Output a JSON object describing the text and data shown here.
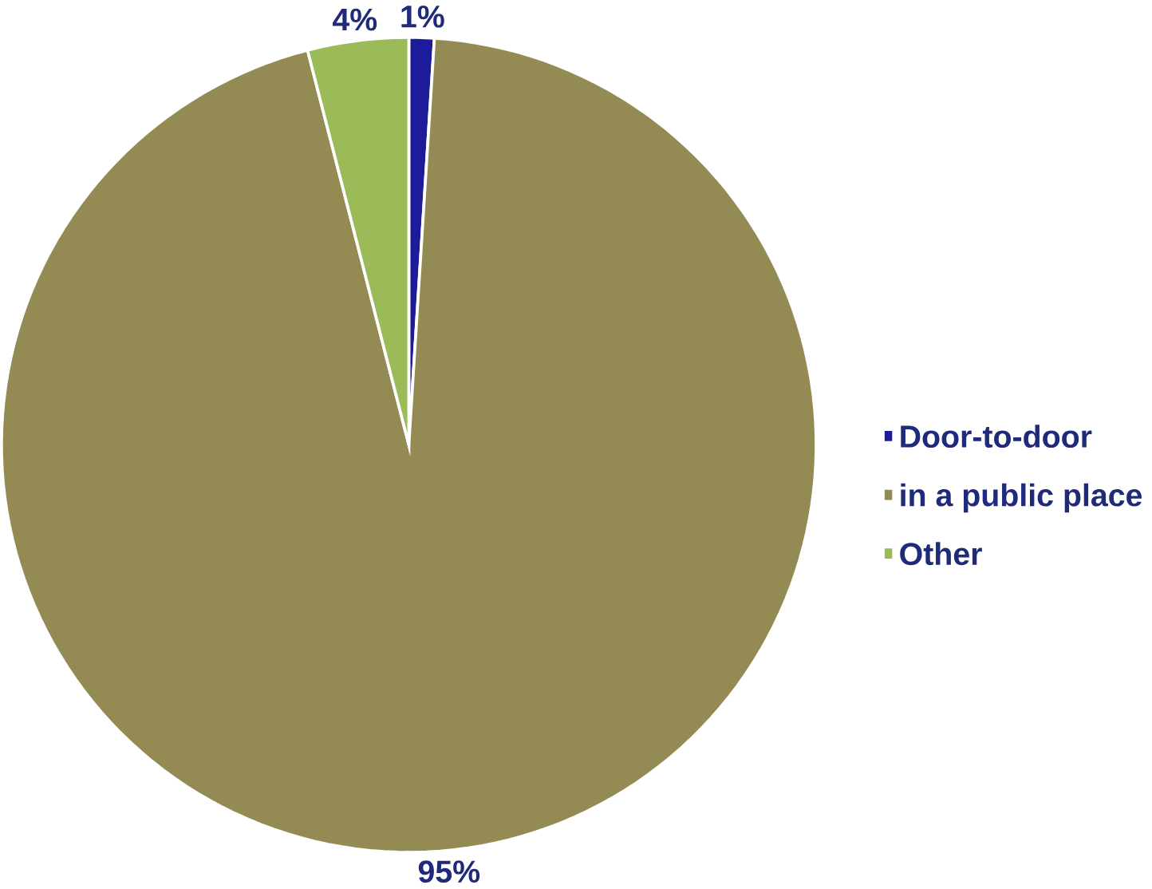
{
  "chart_data": {
    "type": "pie",
    "categories": [
      "Door-to-door",
      "in a public place",
      "Other"
    ],
    "values": [
      1,
      95,
      4
    ],
    "colors": [
      "#1c1c9a",
      "#948a54",
      "#9bbb59"
    ],
    "value_labels": [
      "1%",
      "95%",
      "4%"
    ],
    "legend": "right"
  }
}
